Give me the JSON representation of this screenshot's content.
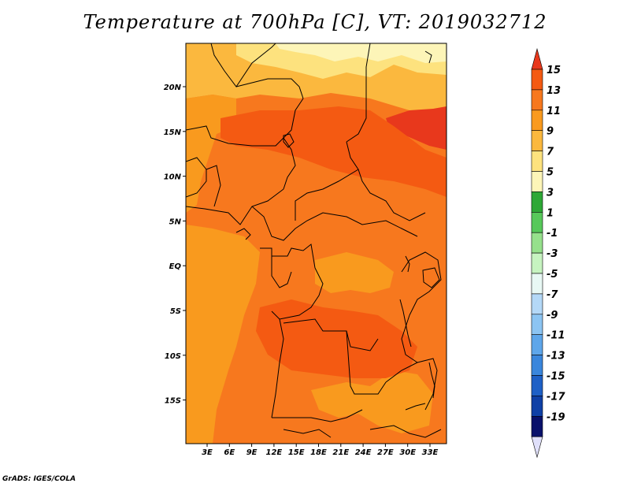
{
  "title": "Temperature at 700hPa [C], VT: 2019032712",
  "credit": "GrADS: IGES/COLA",
  "lat_labels": [
    "20N",
    "15N",
    "10N",
    "5N",
    "EQ",
    "5S",
    "10S",
    "15S"
  ],
  "lon_labels": [
    "3E",
    "6E",
    "9E",
    "12E",
    "15E",
    "18E",
    "21E",
    "24E",
    "27E",
    "30E",
    "33E"
  ],
  "colorbar": {
    "levels": [
      "15",
      "13",
      "11",
      "9",
      "7",
      "5",
      "3",
      "1",
      "-1",
      "-3",
      "-5",
      "-7",
      "-9",
      "-11",
      "-13",
      "-15",
      "-17",
      "-19"
    ],
    "colors": [
      "#e8381c",
      "#f45a12",
      "#f7781e",
      "#f99a1e",
      "#fbb83e",
      "#fde27e",
      "#fdf5b8",
      "#2ea836",
      "#57c85a",
      "#96e08c",
      "#c6f3c0",
      "#e8f8f4",
      "#b4d8f7",
      "#8cc4f2",
      "#5ea6ea",
      "#3a86dc",
      "#1e60c6",
      "#0f40a6",
      "#09116b",
      "#e0e0fa"
    ],
    "top_arrow_color": "#e8381c",
    "bottom_arrow_color": "#e0e0fa"
  },
  "map_colors": {
    "base": "#f7781e",
    "warm": "#f45a12",
    "hot": "#e8381c",
    "mild": "#f99a1e",
    "cool": "#fbb83e",
    "pale": "#fde27e",
    "palest": "#fdf5b8"
  }
}
